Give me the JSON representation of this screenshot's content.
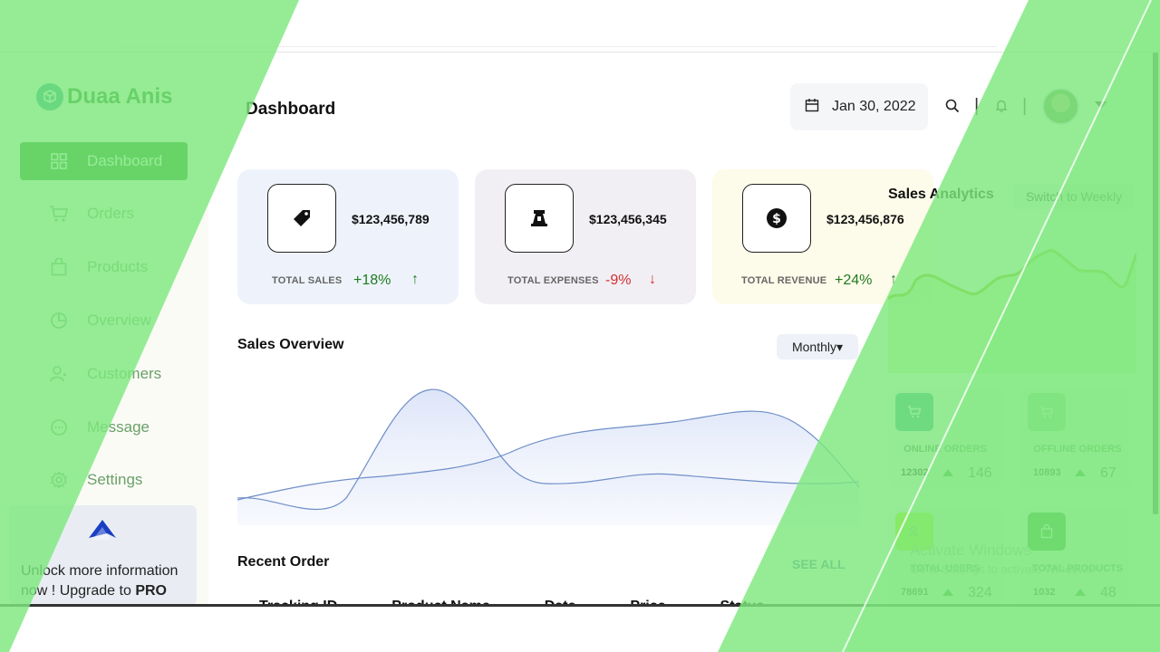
{
  "sidebar": {
    "brand": "Duaa Anis",
    "items": [
      {
        "label": "Dashboard",
        "icon": "grid-icon"
      },
      {
        "label": "Orders",
        "icon": "cart-icon"
      },
      {
        "label": "Products",
        "icon": "bag-icon"
      },
      {
        "label": "Overview",
        "icon": "pie-chart-icon"
      },
      {
        "label": "Customers",
        "icon": "users-icon"
      },
      {
        "label": "Message",
        "icon": "chat-icon"
      },
      {
        "label": "Settings",
        "icon": "gear-icon"
      }
    ],
    "promo": {
      "text": "Unlock more information now ! Upgrade to",
      "emphasis": "PRO"
    }
  },
  "header": {
    "title": "Dashboard",
    "date": "Jan 30, 2022",
    "separator": "|"
  },
  "cards": [
    {
      "value": "$123,456,789",
      "label": "TOTAL SALES",
      "change": "+18%",
      "direction": "up",
      "icon": "tag-icon",
      "bg": "#eef3fb"
    },
    {
      "value": "$123,456,345",
      "label": "TOTAL EXPENSES",
      "change": "-9%",
      "direction": "down",
      "icon": "expenses-icon",
      "bg": "#f2eff4"
    },
    {
      "value": "$123,456,876",
      "label": "TOTAL REVENUE",
      "change": "+24%",
      "direction": "up",
      "icon": "dollar-icon",
      "bg": "#fdfbe9"
    }
  ],
  "arrows": {
    "up": "↑",
    "down": "↓"
  },
  "sales_overview": {
    "title": "Sales Overview",
    "period": "Monthly▾"
  },
  "recent_order": {
    "title": "Recent Order",
    "see_all": "SEE ALL",
    "columns": [
      "Tracking ID",
      "Product Name",
      "Date",
      "Price",
      "Status"
    ]
  },
  "sales_analytics": {
    "title": "Sales Analytics",
    "switch_label": "Switch to Weekly"
  },
  "stats": [
    {
      "label": "ONLINE ORDERS",
      "value": "12302",
      "change": "146",
      "icon": "cart-icon",
      "bg": "#2f9e8f"
    },
    {
      "label": "OFFLINE ORDERS",
      "value": "10893",
      "change": "67",
      "icon": "cart-icon",
      "bg": "#8fd48f"
    },
    {
      "label": "TOTAL USERS",
      "value": "78691",
      "change": "324",
      "icon": "user-icon",
      "bg": "#b7f000"
    },
    {
      "label": "TOTAL PRODUCTS",
      "value": "1032",
      "change": "48",
      "icon": "bag-icon",
      "bg": "#0a7a0a"
    }
  ],
  "watermark": {
    "line1": "Activate Windows",
    "line2": "Go to Settings to activate Windows."
  },
  "colors": {
    "brand": "#0a7a0a",
    "accent_green": "#7ee87e",
    "up": "#1f7a1f",
    "down": "#d03030"
  }
}
